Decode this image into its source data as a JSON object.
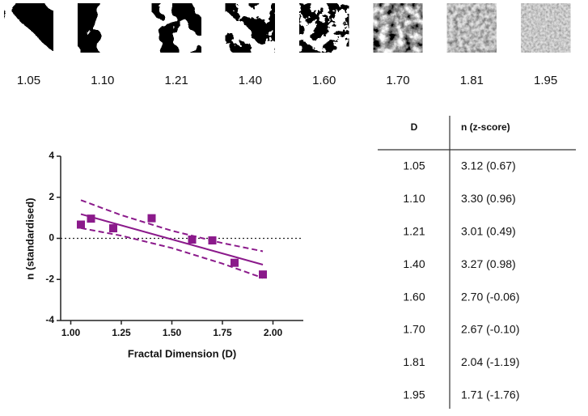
{
  "thumbnails": {
    "labels": [
      "1.05",
      "1.10",
      "1.21",
      "1.40",
      "1.60",
      "1.70",
      "1.81",
      "1.95"
    ]
  },
  "chart_data": {
    "type": "scatter",
    "xlabel": "Fractal Dimension (D)",
    "ylabel": "n (standardised)",
    "x": [
      1.05,
      1.1,
      1.21,
      1.4,
      1.6,
      1.7,
      1.81,
      1.95
    ],
    "values": [
      0.67,
      0.96,
      0.49,
      0.98,
      -0.06,
      -0.1,
      -1.19,
      -1.76
    ],
    "color": "#8b1a8b",
    "fit": {
      "x": [
        1.05,
        1.95
      ],
      "y": [
        1.18,
        -1.28
      ]
    },
    "confidence_band": {
      "x": [
        1.05,
        1.25,
        1.5,
        1.75,
        1.95
      ],
      "upper": [
        1.86,
        1.13,
        0.37,
        -0.23,
        -0.63
      ],
      "lower": [
        0.5,
        0.13,
        -0.47,
        -1.23,
        -1.93
      ]
    },
    "hline": 0,
    "xlim": [
      0.95,
      2.15
    ],
    "ylim": [
      -4,
      4
    ],
    "xticks": [
      {
        "value": 1,
        "label": "1.00"
      },
      {
        "value": 1.25,
        "label": "1.25"
      },
      {
        "value": 1.5,
        "label": "1.50"
      },
      {
        "value": 1.75,
        "label": "1.75"
      },
      {
        "value": 2,
        "label": "2.00"
      }
    ],
    "yticks": [
      -4,
      -2,
      0,
      2,
      4
    ]
  },
  "table": {
    "header": [
      "D",
      "n (z-score)"
    ],
    "rows": [
      [
        "1.05",
        "3.12 (0.67)"
      ],
      [
        "1.10",
        "3.30 (0.96)"
      ],
      [
        "1.21",
        "3.01 (0.49)"
      ],
      [
        "1.40",
        "3.27 (0.98)"
      ],
      [
        "1.60",
        "2.70 (-0.06)"
      ],
      [
        "1.70",
        "2.67 (-0.10)"
      ],
      [
        "1.81",
        "2.04 (-1.19)"
      ],
      [
        "1.95",
        "1.71 (-1.76)"
      ]
    ]
  }
}
